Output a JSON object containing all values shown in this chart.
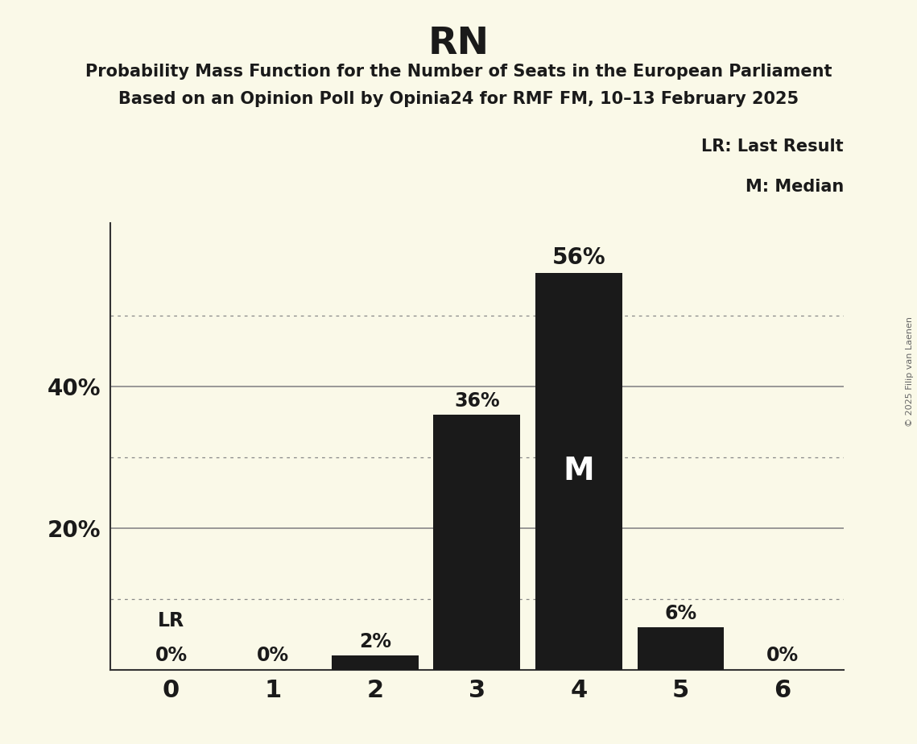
{
  "title": "RN",
  "subtitle1": "Probability Mass Function for the Number of Seats in the European Parliament",
  "subtitle2": "Based on an Opinion Poll by Opinia24 for RMF FM, 10–13 February 2025",
  "copyright": "© 2025 Filip van Laenen",
  "categories": [
    0,
    1,
    2,
    3,
    4,
    5,
    6
  ],
  "values": [
    0,
    0,
    2,
    36,
    56,
    6,
    0
  ],
  "bar_color": "#1a1a1a",
  "background_color": "#faf9e8",
  "ylim": [
    0,
    63
  ],
  "grid_color": "#888888",
  "solid_gridlines": [
    20,
    40
  ],
  "dotted_gridlines": [
    10,
    30,
    50
  ],
  "legend_lr": "LR: Last Result",
  "legend_m": "M: Median",
  "median_bar_idx": 4,
  "label_color_dark": "#1a1a1a",
  "label_color_white": "#ffffff",
  "lr_bar_idx": 0,
  "ytick_positions": [
    20,
    40
  ],
  "ytick_labels": [
    "20%",
    "40%"
  ]
}
